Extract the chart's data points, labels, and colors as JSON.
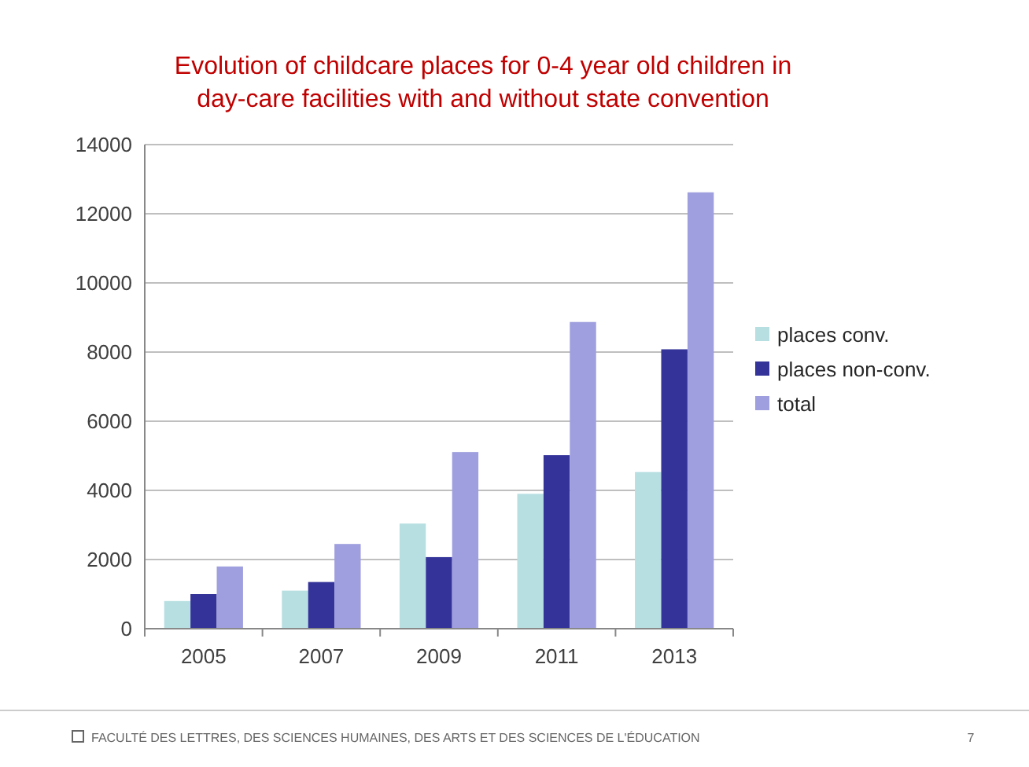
{
  "chart_data": {
    "type": "bar",
    "title": "Evolution of childcare places for 0-4 year old children in day-care facilities with and without state convention",
    "categories": [
      "2005",
      "2007",
      "2009",
      "2011",
      "2013"
    ],
    "series": [
      {
        "name": "places conv.",
        "color": "#b7dfe2",
        "values": [
          800,
          1100,
          3040,
          3900,
          4530
        ]
      },
      {
        "name": "places non-conv.",
        "color": "#333399",
        "values": [
          1000,
          1350,
          2070,
          5020,
          8080
        ]
      },
      {
        "name": "total",
        "color": "#9f9fdf",
        "values": [
          1800,
          2450,
          5110,
          8870,
          12620
        ]
      }
    ],
    "ylim": [
      0,
      14000
    ],
    "yticks": [
      0,
      2000,
      4000,
      6000,
      8000,
      10000,
      12000,
      14000
    ],
    "grid": "y",
    "legend": "right",
    "annotations": [
      "FACULTÉ DES LETTRES, DES SCIENCES HUMAINES, DES ARTS ET DES SCIENCES DE L'ÉDUCATION",
      "7"
    ]
  }
}
